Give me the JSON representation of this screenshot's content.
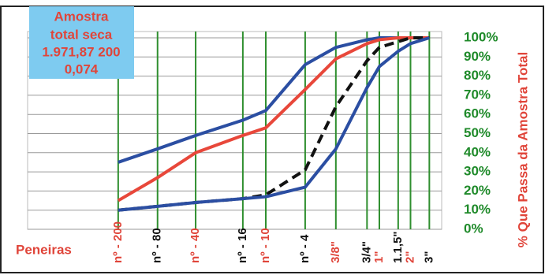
{
  "chart_data": {
    "type": "line",
    "annotation": [
      "Amostra",
      "total seca",
      "1.971,87 200",
      "0,074"
    ],
    "xlabel": "Peneiras",
    "ylabel": "% Que Passa da Amostra Total",
    "xscale": "log",
    "xlim": [
      0.01,
      100
    ],
    "xticks": [
      {
        "value": 0.075,
        "label": "nº - 200"
      },
      {
        "value": 0.18,
        "label": "nº - 80"
      },
      {
        "value": 0.42,
        "label": "nº - 40"
      },
      {
        "value": 1.2,
        "label": "nº - 16"
      },
      {
        "value": 2.0,
        "label": "nº - 10"
      },
      {
        "value": 4.8,
        "label": "nº - 4"
      },
      {
        "value": 9.5,
        "label": "3/8\""
      },
      {
        "value": 19,
        "label": "3/4\""
      },
      {
        "value": 25,
        "label": "1\""
      },
      {
        "value": 38,
        "label": "1.1,5\""
      },
      {
        "value": 50,
        "label": "2\""
      },
      {
        "value": 76,
        "label": "3\""
      }
    ],
    "xtick_colors": [
      "#e0453a",
      "#111111",
      "#e0453a",
      "#111111",
      "#e0453a",
      "#111111",
      "#e0453a",
      "#111111",
      "#e0453a",
      "#111111",
      "#e0453a",
      "#111111"
    ],
    "ylim": [
      0,
      100
    ],
    "yticks": [
      {
        "value": 0,
        "label": "0%"
      },
      {
        "value": 10,
        "label": "10%"
      },
      {
        "value": 20,
        "label": "20%"
      },
      {
        "value": 30,
        "label": "30%"
      },
      {
        "value": 40,
        "label": "40%"
      },
      {
        "value": 50,
        "label": "50%"
      },
      {
        "value": 60,
        "label": "60%"
      },
      {
        "value": 70,
        "label": "70%"
      },
      {
        "value": 80,
        "label": "80%"
      },
      {
        "value": 90,
        "label": "90%"
      },
      {
        "value": 100,
        "label": "100%"
      }
    ],
    "x": [
      0.075,
      0.18,
      0.42,
      1.2,
      2.0,
      4.8,
      9.5,
      19,
      25,
      38,
      50,
      76
    ],
    "series": [
      {
        "color": "#2b4ea2",
        "dash": false,
        "values": [
          35,
          42,
          49,
          57,
          62,
          86,
          95,
          99,
          100,
          100,
          100,
          100
        ]
      },
      {
        "color": "#e8473a",
        "dash": false,
        "values": [
          15,
          27,
          40,
          49,
          53,
          73,
          89,
          97,
          99,
          100,
          100,
          100
        ]
      },
      {
        "color": "#111111",
        "dash": true,
        "values": [
          10,
          12,
          14,
          16,
          18,
          31,
          64,
          88,
          95,
          98,
          100,
          100
        ]
      },
      {
        "color": "#2b4ea2",
        "dash": false,
        "values": [
          10,
          12,
          14,
          16,
          17,
          22,
          42,
          74,
          85,
          93,
          97,
          100
        ]
      }
    ]
  }
}
